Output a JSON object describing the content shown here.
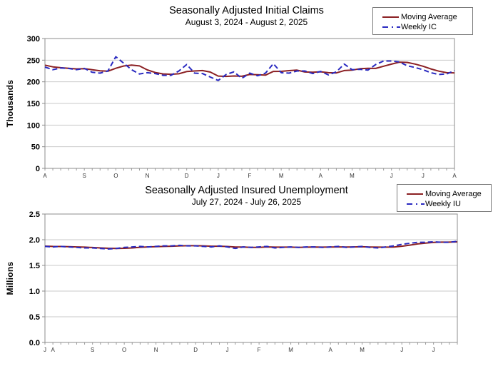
{
  "page": {
    "background": "#ffffff",
    "grid_color": "#c9c9c9",
    "border_color": "#8c8c8c",
    "tick_color": "#999999"
  },
  "chart_data": [
    {
      "type": "line",
      "title": "Seasonally Adjusted Initial Claims",
      "subtitle": "August 3, 2024 - August 2, 2025",
      "ylabel": "Thousands",
      "xlabel": "",
      "ylim": [
        0,
        300
      ],
      "grid": "horizontal",
      "legend_position": "top-right",
      "yticks": [
        {
          "value": 0,
          "label": "0"
        },
        {
          "value": 50,
          "label": "50"
        },
        {
          "value": 100,
          "label": "100"
        },
        {
          "value": 150,
          "label": "150"
        },
        {
          "value": 200,
          "label": "200"
        },
        {
          "value": 250,
          "label": "250"
        },
        {
          "value": 300,
          "label": "300"
        }
      ],
      "x_unit": "week",
      "weeks": 53,
      "month_tick_labels": [
        {
          "label": "A",
          "week": 0
        },
        {
          "label": "S",
          "week": 5
        },
        {
          "label": "O",
          "week": 9
        },
        {
          "label": "N",
          "week": 13
        },
        {
          "label": "D",
          "week": 18
        },
        {
          "label": "J",
          "week": 22
        },
        {
          "label": "F",
          "week": 26
        },
        {
          "label": "M",
          "week": 30
        },
        {
          "label": "A",
          "week": 35
        },
        {
          "label": "M",
          "week": 39
        },
        {
          "label": "J",
          "week": 44
        },
        {
          "label": "J",
          "week": 48
        },
        {
          "label": "A",
          "week": 52
        }
      ],
      "series": [
        {
          "name": "Moving Average",
          "style": "solid",
          "color": "#8b2023",
          "values": [
            238.5,
            234.5,
            232.5,
            231.25,
            229.75,
            230.5,
            228,
            225.25,
            224.5,
            231.25,
            236.5,
            238.5,
            236.75,
            227.5,
            221.5,
            218.25,
            217.5,
            218.5,
            223.75,
            225,
            226,
            222.5,
            213.25,
            212.5,
            213.5,
            212.75,
            217,
            216.25,
            215.5,
            224,
            224.25,
            225.75,
            227,
            222.75,
            222.25,
            223.25,
            221,
            220.5,
            226,
            227,
            230.25,
            231.25,
            231,
            236,
            240.75,
            245.5,
            244.75,
            241,
            236,
            229.75,
            224.75,
            221,
            220.5
          ]
        },
        {
          "name": "Weekly IC",
          "style": "dashed",
          "color": "#2929c0",
          "values": [
            234,
            228,
            232,
            231,
            228,
            231,
            222,
            220,
            225,
            258,
            243,
            228,
            218,
            221,
            219,
            215,
            215,
            225,
            240,
            220,
            219,
            211,
            203,
            217,
            223,
            208,
            220,
            214,
            220,
            242,
            221,
            220,
            225,
            225,
            219,
            224,
            216,
            223,
            241,
            228,
            229,
            227,
            240,
            248,
            248,
            246,
            237,
            233,
            228,
            221,
            217,
            218,
            226
          ]
        }
      ]
    },
    {
      "type": "line",
      "title": "Seasonally Adjusted Insured Unemployment",
      "subtitle": "July 27, 2024 - July 26, 2025",
      "ylabel": "Millions",
      "xlabel": "",
      "ylim": [
        0,
        2.5
      ],
      "grid": "horizontal",
      "legend_position": "top-right",
      "yticks": [
        {
          "value": 0,
          "label": "0.0"
        },
        {
          "value": 0.5,
          "label": "0.5"
        },
        {
          "value": 1.0,
          "label": "1.0"
        },
        {
          "value": 1.5,
          "label": "1.5"
        },
        {
          "value": 2.0,
          "label": "2.0"
        },
        {
          "value": 2.5,
          "label": "2.5"
        }
      ],
      "x_unit": "week",
      "weeks": 53,
      "month_tick_labels": [
        {
          "label": "J",
          "week": 0
        },
        {
          "label": "A",
          "week": 1
        },
        {
          "label": "S",
          "week": 6
        },
        {
          "label": "O",
          "week": 10
        },
        {
          "label": "N",
          "week": 14
        },
        {
          "label": "D",
          "week": 19
        },
        {
          "label": "J",
          "week": 23
        },
        {
          "label": "F",
          "week": 27
        },
        {
          "label": "M",
          "week": 31
        },
        {
          "label": "A",
          "week": 36
        },
        {
          "label": "M",
          "week": 40
        },
        {
          "label": "J",
          "week": 45
        },
        {
          "label": "J",
          "week": 49
        }
      ],
      "series": [
        {
          "name": "Moving Average",
          "style": "solid",
          "color": "#8b2023",
          "values": [
            1.875,
            1.87,
            1.868,
            1.865,
            1.86,
            1.855,
            1.848,
            1.84,
            1.833,
            1.83,
            1.833,
            1.84,
            1.853,
            1.86,
            1.865,
            1.87,
            1.873,
            1.88,
            1.883,
            1.883,
            1.88,
            1.873,
            1.873,
            1.868,
            1.858,
            1.858,
            1.85,
            1.85,
            1.86,
            1.855,
            1.855,
            1.855,
            1.85,
            1.855,
            1.858,
            1.855,
            1.858,
            1.86,
            1.858,
            1.86,
            1.863,
            1.858,
            1.855,
            1.855,
            1.858,
            1.873,
            1.895,
            1.918,
            1.935,
            1.948,
            1.953,
            1.953,
            1.958
          ]
        },
        {
          "name": "Weekly IU",
          "style": "dashed",
          "color": "#2929c0",
          "values": [
            1.87,
            1.86,
            1.87,
            1.86,
            1.85,
            1.84,
            1.84,
            1.83,
            1.82,
            1.83,
            1.85,
            1.86,
            1.87,
            1.86,
            1.87,
            1.88,
            1.88,
            1.89,
            1.88,
            1.88,
            1.87,
            1.86,
            1.88,
            1.86,
            1.83,
            1.86,
            1.85,
            1.86,
            1.87,
            1.84,
            1.85,
            1.86,
            1.85,
            1.86,
            1.86,
            1.85,
            1.86,
            1.87,
            1.85,
            1.86,
            1.87,
            1.85,
            1.84,
            1.86,
            1.88,
            1.91,
            1.93,
            1.95,
            1.95,
            1.96,
            1.95,
            1.95,
            1.97
          ]
        }
      ]
    }
  ]
}
